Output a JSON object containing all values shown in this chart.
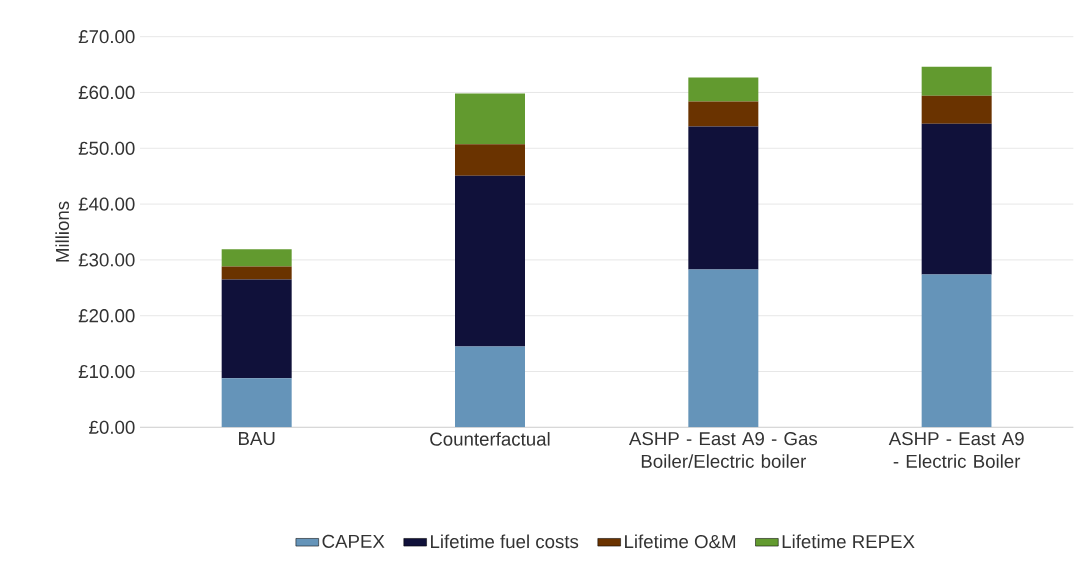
{
  "chart_data": {
    "type": "bar",
    "stacked": true,
    "ylabel": "Millions",
    "categories": [
      "BAU",
      "Counterfactual",
      "ASHP - East A9 - Gas Boiler/Electric boiler",
      "ASHP - East A9 - Electric Boiler"
    ],
    "series": [
      {
        "name": "CAPEX",
        "color": "#6594b9",
        "values": [
          8.8,
          14.5,
          28.3,
          27.4
        ]
      },
      {
        "name": "Lifetime fuel costs",
        "color": "#10113a",
        "values": [
          17.7,
          30.6,
          25.6,
          27.0
        ]
      },
      {
        "name": "Lifetime O&M",
        "color": "#6a3300",
        "values": [
          2.3,
          5.6,
          4.5,
          5.0
        ]
      },
      {
        "name": "Lifetime REPEX",
        "color": "#629a2f",
        "values": [
          3.1,
          9.1,
          4.3,
          5.2
        ]
      }
    ],
    "ylim": [
      0,
      70
    ],
    "yticks": [
      {
        "value": 0,
        "label": "£0.00"
      },
      {
        "value": 10,
        "label": "£10.00"
      },
      {
        "value": 20,
        "label": "£20.00"
      },
      {
        "value": 30,
        "label": "£30.00"
      },
      {
        "value": 40,
        "label": "£40.00"
      },
      {
        "value": 50,
        "label": "£50.00"
      },
      {
        "value": 60,
        "label": "£60.00"
      },
      {
        "value": 70,
        "label": "£70.00"
      }
    ],
    "grid": "y",
    "legend": "bottom"
  }
}
